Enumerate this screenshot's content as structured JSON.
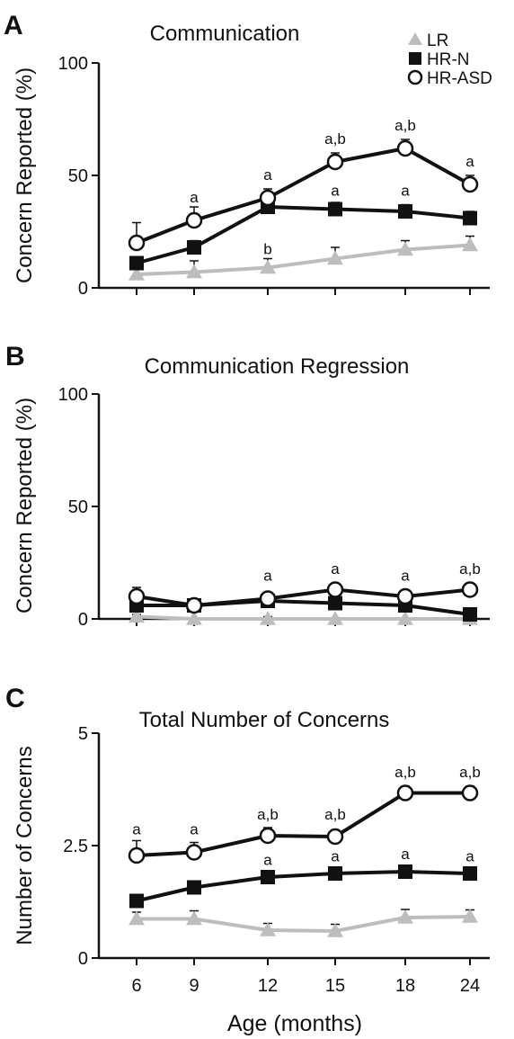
{
  "legend": [
    {
      "name": "LR",
      "marker": "triangle",
      "color": "#bdbdbd"
    },
    {
      "name": "HR-N",
      "marker": "square",
      "color": "#111111"
    },
    {
      "name": "HR-ASD",
      "marker": "circle",
      "color": "#111111"
    }
  ],
  "xlabel": "Age (months)",
  "chart_data": [
    {
      "type": "line",
      "panel_letter": "A",
      "title": "Communication",
      "ylabel": "Concern Reported (%)",
      "ylim": [
        0,
        100
      ],
      "yticks": [
        "0",
        "50",
        "100"
      ],
      "ytick_values": [
        0,
        50,
        100
      ],
      "categories": [
        "6",
        "9",
        "12",
        "15",
        "18",
        "24"
      ],
      "legend_position": "top-right",
      "series": [
        {
          "name": "LR",
          "values": [
            6,
            7,
            9,
            13,
            17,
            19
          ],
          "err": [
            3,
            5,
            4,
            5,
            4,
            4
          ]
        },
        {
          "name": "HR-N",
          "values": [
            11,
            18,
            36,
            35,
            34,
            31
          ],
          "err": [
            2,
            3,
            3,
            3,
            3,
            3
          ]
        },
        {
          "name": "HR-ASD",
          "values": [
            20,
            30,
            40,
            56,
            62,
            46
          ],
          "err": [
            9,
            6,
            4,
            4,
            4,
            4
          ]
        }
      ],
      "annotations": [
        {
          "x": "9",
          "y": 38,
          "text": "a"
        },
        {
          "x": "12",
          "y": 48,
          "text": "a"
        },
        {
          "x": "12",
          "y": 15,
          "text": "b"
        },
        {
          "x": "15",
          "y": 64,
          "text": "a,b"
        },
        {
          "x": "15",
          "y": 41,
          "text": "a"
        },
        {
          "x": "18",
          "y": 70,
          "text": "a,b"
        },
        {
          "x": "18",
          "y": 41,
          "text": "a"
        },
        {
          "x": "24",
          "y": 54,
          "text": "a"
        }
      ]
    },
    {
      "type": "line",
      "panel_letter": "B",
      "title": "Communication Regression",
      "ylabel": "Concern Reported (%)",
      "ylim": [
        0,
        100
      ],
      "yticks": [
        "0",
        "50",
        "100"
      ],
      "ytick_values": [
        0,
        50,
        100
      ],
      "categories": [
        "6",
        "9",
        "12",
        "15",
        "18",
        "24"
      ],
      "series": [
        {
          "name": "LR",
          "values": [
            1,
            0,
            0,
            0,
            0,
            0
          ],
          "err": [
            1,
            0,
            1,
            0,
            0,
            0
          ]
        },
        {
          "name": "HR-N",
          "values": [
            6,
            6,
            8,
            7,
            6,
            2
          ],
          "err": [
            2,
            2,
            2,
            2,
            2,
            1
          ]
        },
        {
          "name": "HR-ASD",
          "values": [
            10,
            6,
            9,
            13,
            10,
            13
          ],
          "err": [
            4,
            2,
            2,
            2,
            2,
            2
          ]
        }
      ],
      "annotations": [
        {
          "x": "12",
          "y": 17,
          "text": "a"
        },
        {
          "x": "15",
          "y": 20,
          "text": "a"
        },
        {
          "x": "18",
          "y": 17,
          "text": "a"
        },
        {
          "x": "24",
          "y": 20,
          "text": "a,b"
        }
      ]
    },
    {
      "type": "line",
      "panel_letter": "C",
      "title": "Total Number of Concerns",
      "ylabel": "Number of Concerns",
      "ylim": [
        0,
        5
      ],
      "yticks": [
        "0",
        "2.5",
        "5"
      ],
      "ytick_values": [
        0,
        2.5,
        5
      ],
      "categories": [
        "6",
        "9",
        "12",
        "15",
        "18",
        "24"
      ],
      "series": [
        {
          "name": "LR",
          "values": [
            0.87,
            0.87,
            0.62,
            0.6,
            0.9,
            0.92
          ],
          "err": [
            0.15,
            0.18,
            0.15,
            0.15,
            0.18,
            0.15
          ]
        },
        {
          "name": "HR-N",
          "values": [
            1.27,
            1.57,
            1.8,
            1.88,
            1.92,
            1.88
          ],
          "err": [
            0.12,
            0.12,
            0.12,
            0.1,
            0.1,
            0.1
          ]
        },
        {
          "name": "HR-ASD",
          "values": [
            2.28,
            2.35,
            2.72,
            2.7,
            3.67,
            3.67
          ],
          "err": [
            0.33,
            0.22,
            0.18,
            0.15,
            0.15,
            0.15
          ]
        }
      ],
      "annotations": [
        {
          "x": "6",
          "y": 2.75,
          "text": "a"
        },
        {
          "x": "9",
          "y": 2.75,
          "text": "a"
        },
        {
          "x": "12",
          "y": 3.08,
          "text": "a,b"
        },
        {
          "x": "12",
          "y": 2.07,
          "text": "a"
        },
        {
          "x": "15",
          "y": 3.08,
          "text": "a,b"
        },
        {
          "x": "15",
          "y": 2.15,
          "text": "a"
        },
        {
          "x": "18",
          "y": 4.02,
          "text": "a,b"
        },
        {
          "x": "18",
          "y": 2.2,
          "text": "a"
        },
        {
          "x": "24",
          "y": 4.02,
          "text": "a,b"
        },
        {
          "x": "24",
          "y": 2.15,
          "text": "a"
        }
      ]
    }
  ]
}
